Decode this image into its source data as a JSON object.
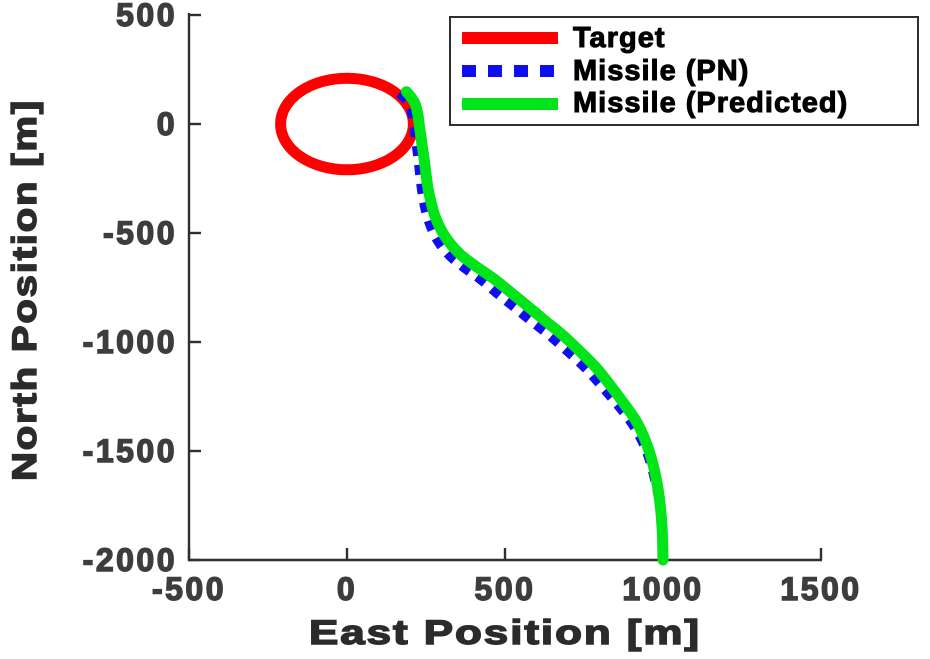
{
  "figure": {
    "background": "#ffffff"
  },
  "chart_data": {
    "type": "line",
    "title": "",
    "xlabel": "East Position [m]",
    "ylabel": "North Position [m]",
    "xlim": [
      -500,
      1500
    ],
    "ylim": [
      -2000,
      500
    ],
    "xticks": [
      -500,
      0,
      500,
      1000,
      1500
    ],
    "yticks": [
      500,
      0,
      -500,
      -1000,
      -1500,
      -2000
    ],
    "grid": false,
    "axis_color": "#2f2f2f",
    "tick_label_color": "#3d3d3d",
    "axis_title_color": "#2b2b2b",
    "legend_position": "top-right",
    "series": [
      {
        "name": "Target",
        "shape": "circle",
        "color": "#ff0000",
        "line_width": 11,
        "center": [
          0,
          0
        ],
        "radius": 210
      },
      {
        "name": "Missile (PN)",
        "shape": "line",
        "color": "#0e0ef0",
        "line_width": 9,
        "dash": [
          10,
          9
        ],
        "points": [
          [
            165,
            140
          ],
          [
            180,
            120
          ],
          [
            196,
            88
          ],
          [
            206,
            40
          ],
          [
            213,
            -25
          ],
          [
            219,
            -95
          ],
          [
            225,
            -165
          ],
          [
            230,
            -235
          ],
          [
            236,
            -305
          ],
          [
            243,
            -365
          ],
          [
            253,
            -425
          ],
          [
            268,
            -485
          ],
          [
            290,
            -545
          ],
          [
            324,
            -605
          ],
          [
            370,
            -660
          ],
          [
            423,
            -715
          ],
          [
            478,
            -782
          ],
          [
            532,
            -845
          ],
          [
            583,
            -905
          ],
          [
            640,
            -970
          ],
          [
            698,
            -1045
          ],
          [
            757,
            -1125
          ],
          [
            810,
            -1212
          ],
          [
            855,
            -1288
          ],
          [
            895,
            -1362
          ],
          [
            925,
            -1432
          ],
          [
            947,
            -1502
          ],
          [
            963,
            -1572
          ],
          [
            975,
            -1642
          ],
          [
            985,
            -1712
          ],
          [
            992,
            -1792
          ],
          [
            997,
            -1882
          ],
          [
            1000,
            -2000
          ]
        ]
      },
      {
        "name": "Missile (Predicted)",
        "shape": "line",
        "color": "#00e418",
        "line_width": 11,
        "points": [
          [
            188,
            148
          ],
          [
            200,
            128
          ],
          [
            215,
            95
          ],
          [
            224,
            45
          ],
          [
            230,
            -20
          ],
          [
            237,
            -90
          ],
          [
            244,
            -160
          ],
          [
            250,
            -230
          ],
          [
            257,
            -300
          ],
          [
            266,
            -360
          ],
          [
            278,
            -420
          ],
          [
            296,
            -480
          ],
          [
            322,
            -540
          ],
          [
            360,
            -600
          ],
          [
            410,
            -655
          ],
          [
            465,
            -710
          ],
          [
            522,
            -777
          ],
          [
            575,
            -840
          ],
          [
            625,
            -900
          ],
          [
            680,
            -965
          ],
          [
            735,
            -1040
          ],
          [
            790,
            -1120
          ],
          [
            838,
            -1208
          ],
          [
            878,
            -1285
          ],
          [
            914,
            -1360
          ],
          [
            938,
            -1430
          ],
          [
            956,
            -1500
          ],
          [
            970,
            -1570
          ],
          [
            980,
            -1640
          ],
          [
            988,
            -1710
          ],
          [
            994,
            -1790
          ],
          [
            998,
            -1880
          ],
          [
            1000,
            -2000
          ]
        ]
      }
    ]
  }
}
